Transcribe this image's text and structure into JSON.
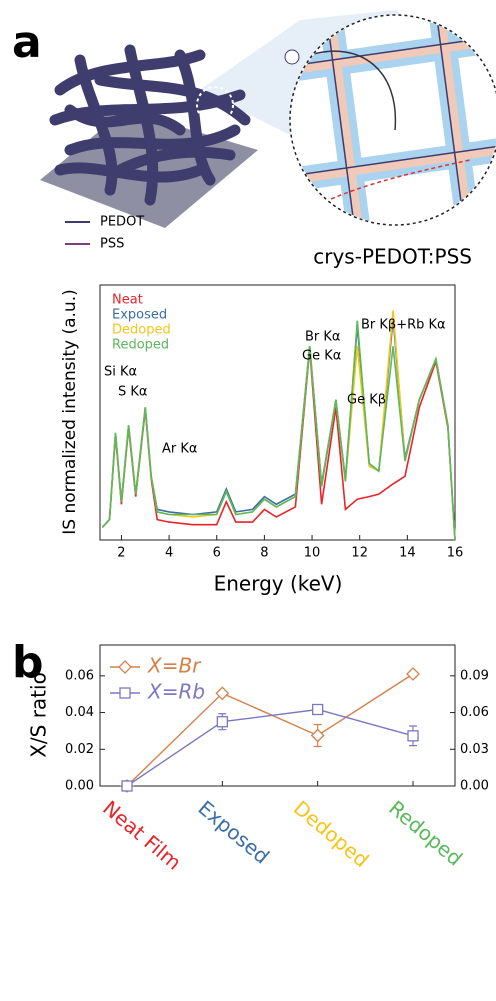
{
  "chart_data": [
    {
      "type": "line",
      "label": "a",
      "title": "crys-PEDOT:PSS",
      "illustration_legend": [
        {
          "name": "PEDOT",
          "color": "#3d3b6e"
        },
        {
          "name": "PSS",
          "color": "#7b3f7f"
        }
      ],
      "x_label": "Energy (keV)",
      "y_label": "IS normalized intensity (a.u.)",
      "xlim": [
        1.1,
        16
      ],
      "xticks": [
        2,
        4,
        6,
        8,
        10,
        12,
        14,
        16
      ],
      "ylim": [
        0,
        100
      ],
      "x": [
        1.2,
        1.5,
        1.75,
        2.0,
        2.3,
        2.6,
        3.0,
        3.25,
        3.5,
        4,
        5,
        6,
        6.4,
        6.8,
        7.5,
        8.0,
        8.5,
        9.3,
        9.9,
        10.4,
        11.0,
        11.4,
        11.9,
        12.4,
        12.8,
        13.4,
        13.9,
        14.5,
        15.2,
        15.7,
        16.0
      ],
      "series": [
        {
          "name": "Neat",
          "color": "#e8232a",
          "values": [
            5,
            8,
            41,
            14,
            44,
            17,
            51,
            24,
            8,
            7,
            6,
            6,
            15,
            7,
            7,
            12,
            9,
            13,
            75,
            14,
            52,
            12,
            16,
            17,
            18,
            22,
            25,
            52,
            70,
            44,
            0
          ]
        },
        {
          "name": "Exposed",
          "color": "#3a6ea5",
          "values": [
            5,
            8,
            42,
            15,
            45,
            18,
            52,
            25,
            12,
            11,
            10,
            11,
            20,
            11,
            12,
            17,
            14,
            18,
            76,
            22,
            55,
            24,
            84,
            30,
            27,
            87,
            32,
            55,
            71,
            45,
            0
          ]
        },
        {
          "name": "Dedoped",
          "color": "#f5c518",
          "values": [
            5,
            8,
            42,
            15,
            45,
            18,
            52,
            25,
            11,
            10,
            9,
            10,
            19,
            10,
            11,
            16,
            13,
            17,
            76,
            21,
            55,
            23,
            76,
            29,
            27,
            90,
            31,
            55,
            71,
            45,
            0
          ]
        },
        {
          "name": "Redoped",
          "color": "#5cb85c",
          "values": [
            5,
            8,
            42,
            15,
            45,
            18,
            52,
            25,
            11,
            10,
            10,
            10,
            19,
            10,
            11,
            16,
            13,
            17,
            76,
            21,
            55,
            23,
            86,
            30,
            27,
            76,
            31,
            55,
            71,
            45,
            0
          ]
        }
      ],
      "annotations": [
        "Si Kα",
        "S Kα",
        "Ar Kα",
        "Ge Kα",
        "Ge Kβ",
        "Br Kα",
        "Br Kβ+Rb Kα"
      ]
    },
    {
      "type": "line",
      "label": "b",
      "y_label": "X/S ratio",
      "categories": [
        "Neat Film",
        "Exposed",
        "Dedoped",
        "Redoped"
      ],
      "category_colors": [
        "#e8232a",
        "#3a6ea5",
        "#f5c518",
        "#5cb85c"
      ],
      "ylim": [
        0,
        0.0768
      ],
      "yticks": [
        {
          "value": 0,
          "label": "0.00"
        },
        {
          "value": 0.02,
          "label": "0.02"
        },
        {
          "value": 0.04,
          "label": "0.04"
        },
        {
          "value": 0.06,
          "label": "0.06"
        }
      ],
      "y2lim": [
        0,
        0.1152
      ],
      "y2ticks": [
        {
          "value": 0,
          "label": "0.00"
        },
        {
          "value": 0.03,
          "label": "0.03"
        },
        {
          "value": 0.06,
          "label": "0.06"
        },
        {
          "value": 0.09,
          "label": "0.09"
        }
      ],
      "series": [
        {
          "name": "X=Br",
          "color": "#d4814a",
          "marker": "diamond",
          "values": [
            0,
            0.0505,
            0.0275,
            0.061
          ],
          "errors": [
            0,
            0.001,
            0.006,
            0.001
          ]
        },
        {
          "name": "X=Rb",
          "color": "#7a78c4",
          "marker": "square",
          "axis": "y2",
          "values": [
            0,
            0.0525,
            0.0625,
            0.041
          ],
          "errors": [
            0,
            0.0065,
            0.003,
            0.008
          ]
        }
      ]
    }
  ]
}
